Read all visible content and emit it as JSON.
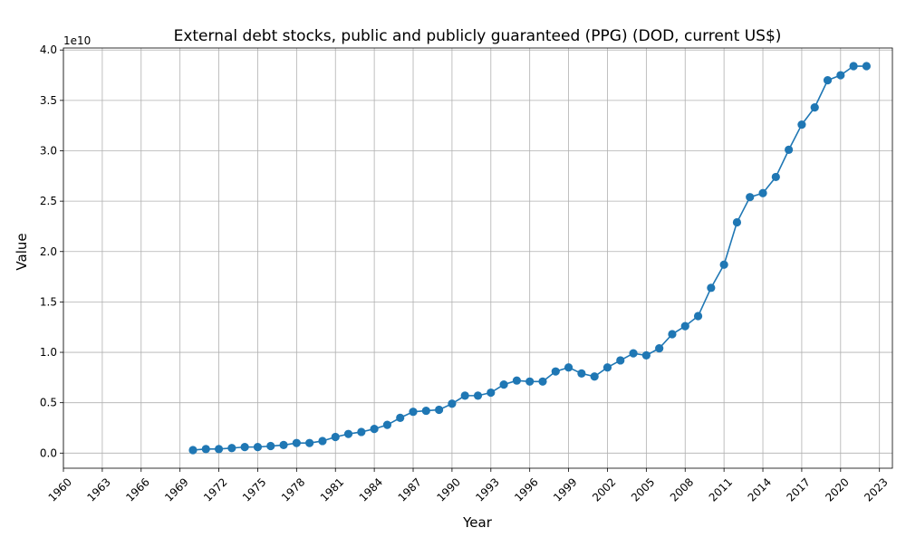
{
  "chart_data": {
    "type": "line",
    "title": "External debt stocks, public and publicly guaranteed (PPG) (DOD, current US$)",
    "xlabel": "Year",
    "ylabel": "Value",
    "y_offset_label": "1e10",
    "xlim": [
      1960,
      2024
    ],
    "ylim": [
      -0.15,
      4.02
    ],
    "x_ticks": [
      "1960",
      "1963",
      "1966",
      "1969",
      "1972",
      "1975",
      "1978",
      "1981",
      "1984",
      "1987",
      "1990",
      "1993",
      "1996",
      "1999",
      "2002",
      "2005",
      "2008",
      "2011",
      "2014",
      "2017",
      "2020",
      "2023"
    ],
    "y_ticks": [
      "0.0",
      "0.5",
      "1.0",
      "1.5",
      "2.0",
      "2.5",
      "3.0",
      "3.5",
      "4.0"
    ],
    "grid": true,
    "series": [
      {
        "color": "#1f77b4",
        "x": [
          1970,
          1971,
          1972,
          1973,
          1974,
          1975,
          1976,
          1977,
          1978,
          1979,
          1980,
          1981,
          1982,
          1983,
          1984,
          1985,
          1986,
          1987,
          1988,
          1989,
          1990,
          1991,
          1992,
          1993,
          1994,
          1995,
          1996,
          1997,
          1998,
          1999,
          2000,
          2001,
          2002,
          2003,
          2004,
          2005,
          2006,
          2007,
          2008,
          2009,
          2010,
          2011,
          2012,
          2013,
          2014,
          2015,
          2016,
          2017,
          2018,
          2019,
          2020,
          2021,
          2022
        ],
        "y": [
          0.03,
          0.04,
          0.04,
          0.05,
          0.06,
          0.06,
          0.07,
          0.08,
          0.1,
          0.1,
          0.12,
          0.16,
          0.19,
          0.21,
          0.24,
          0.28,
          0.35,
          0.41,
          0.42,
          0.43,
          0.49,
          0.57,
          0.57,
          0.6,
          0.68,
          0.72,
          0.71,
          0.71,
          0.81,
          0.85,
          0.79,
          0.76,
          0.85,
          0.92,
          0.99,
          0.97,
          1.04,
          1.18,
          1.26,
          1.36,
          1.64,
          1.87,
          2.29,
          2.54,
          2.58,
          2.74,
          3.01,
          3.26,
          3.43,
          3.7,
          3.75,
          3.84,
          3.84
        ]
      }
    ]
  }
}
